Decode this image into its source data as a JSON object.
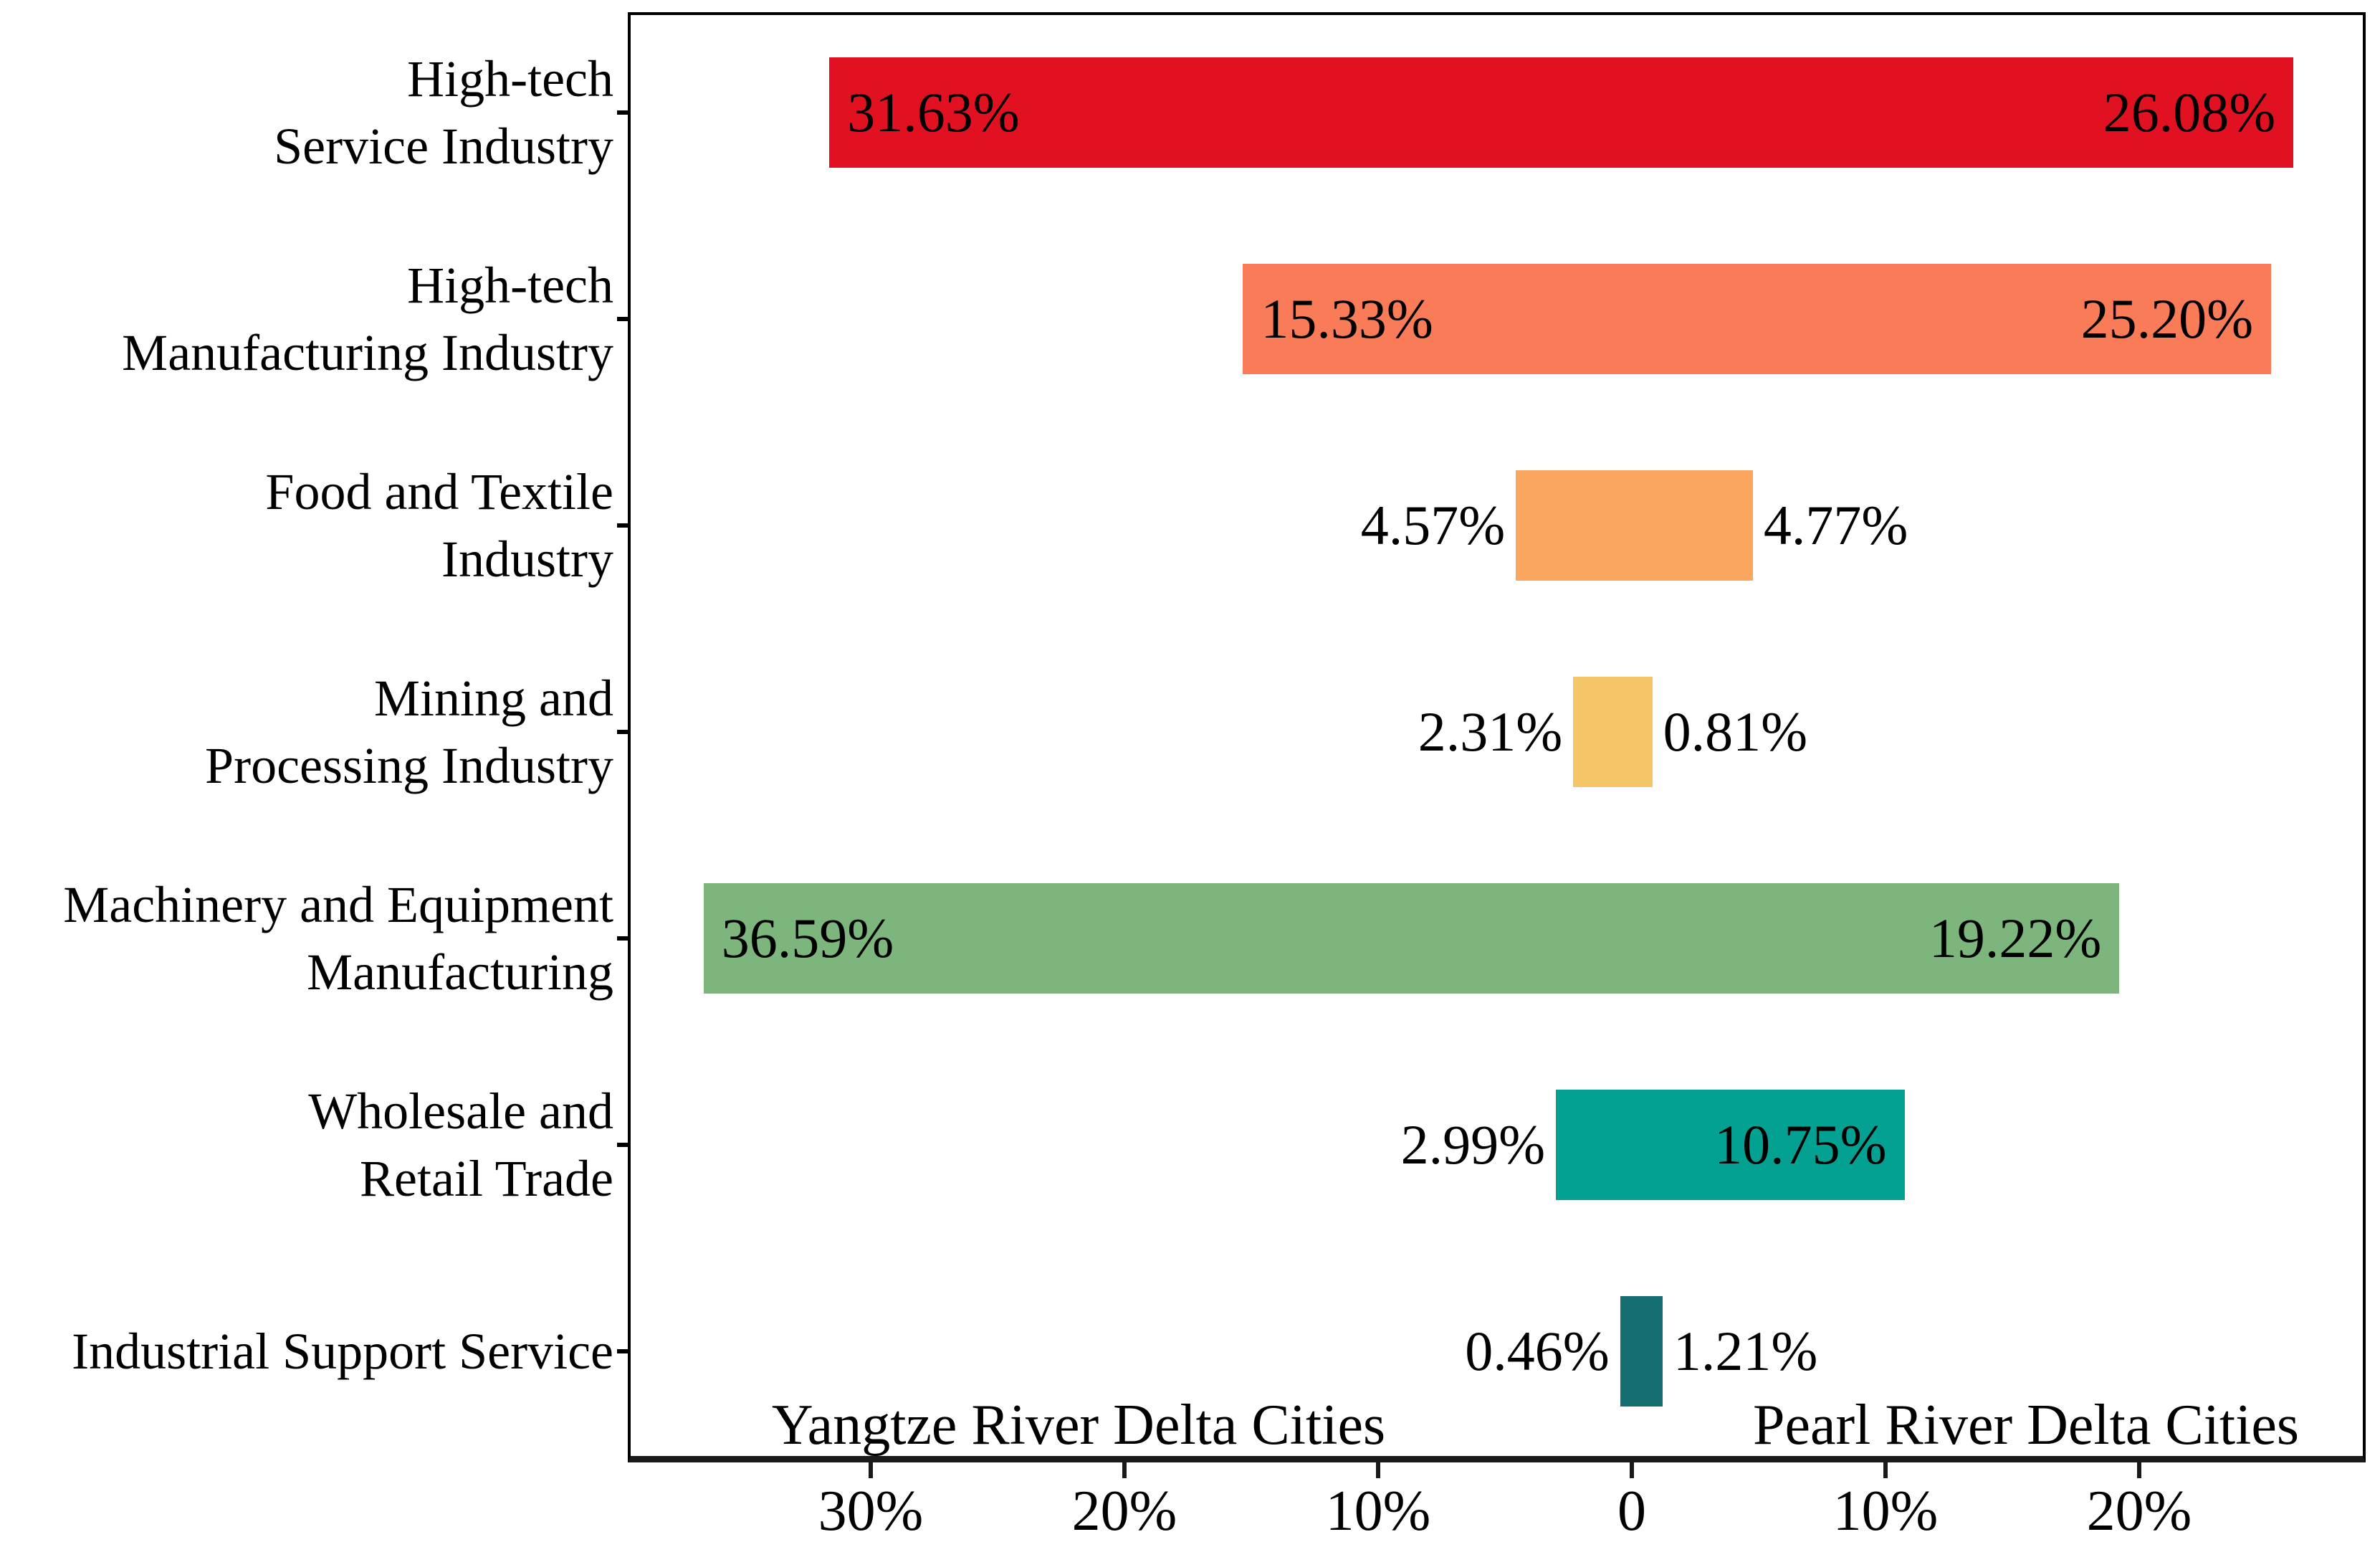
{
  "chart_data": {
    "type": "bar",
    "variant": "diverging-horizontal-tornado",
    "title": "",
    "categories": [
      "High-tech\nService Industry",
      "High-tech\nManufacturing Industry",
      "Food and Textile\nIndustry",
      "Mining and\nProcessing Industry",
      "Machinery and Equipment\nManufacturing",
      "Wholesale and\nRetail Trade",
      "Industrial Support Service"
    ],
    "series": [
      {
        "name": "Yangtze River Delta Cities",
        "side": "left",
        "values": [
          31.63,
          15.33,
          4.57,
          2.31,
          36.59,
          2.99,
          0.46
        ],
        "labels": [
          "31.63%",
          "15.33%",
          "4.57%",
          "2.31%",
          "36.59%",
          "2.99%",
          "0.46%"
        ]
      },
      {
        "name": "Pearl River Delta Cities",
        "side": "right",
        "values": [
          26.08,
          25.2,
          4.77,
          0.81,
          19.22,
          10.75,
          1.21
        ],
        "labels": [
          "26.08%",
          "25.20%",
          "4.77%",
          "0.81%",
          "19.22%",
          "10.75%",
          "1.21%"
        ]
      }
    ],
    "bar_colors": [
      "#E21121",
      "#FA7B57",
      "#FBA65E",
      "#F5C667",
      "#7CB67C",
      "#02A191",
      "#156E70"
    ],
    "x_axis": {
      "tick_values": [
        -30,
        -20,
        -10,
        0,
        10,
        20
      ],
      "tick_labels": [
        "30%",
        "20%",
        "10%",
        "0",
        "10%",
        "20%"
      ],
      "min": -39.6,
      "max": 28.9,
      "unit": "percent"
    },
    "grid": false,
    "legend_position": "inside-bottom",
    "inside_label_threshold_pct": 8
  },
  "colors": {
    "background": "#ffffff",
    "text": "#000000",
    "plot_border": "#000000",
    "axis_line": "#1a1a1a"
  }
}
